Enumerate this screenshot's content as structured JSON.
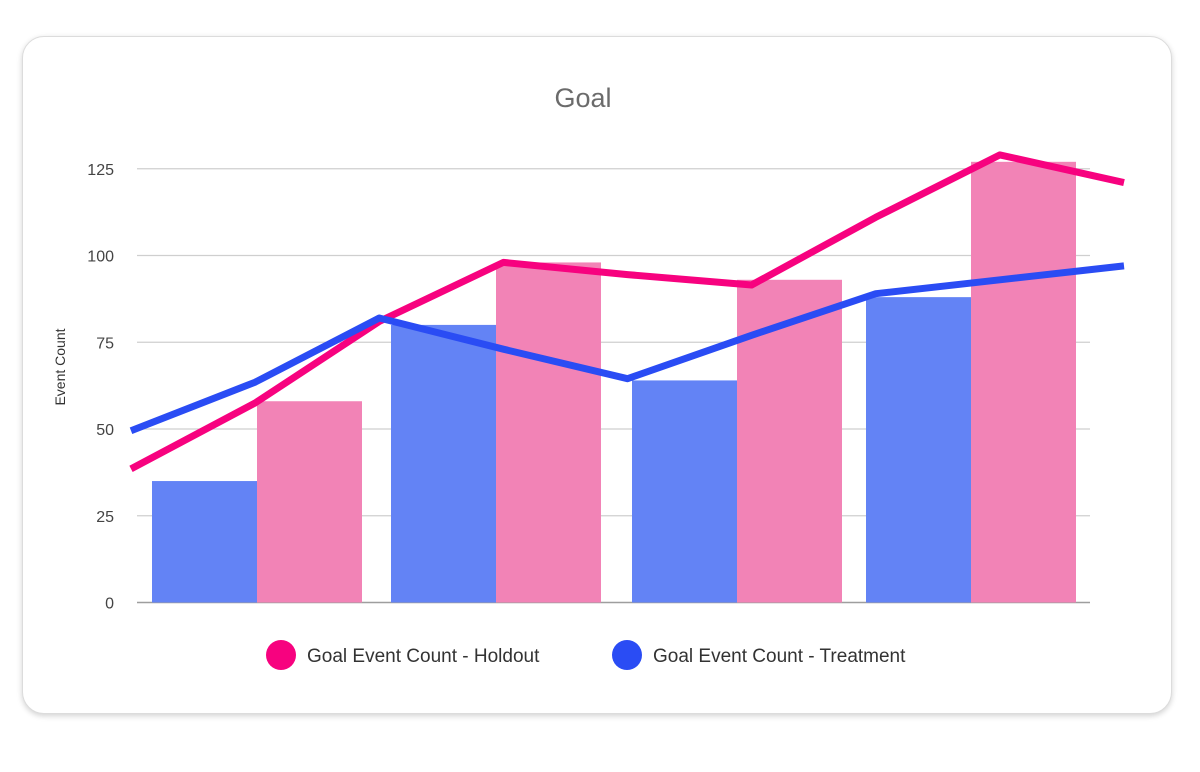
{
  "chart_data": {
    "type": "bar",
    "title": "Goal",
    "xlabel": "",
    "ylabel": "Event Count",
    "ylim": [
      0,
      137.5
    ],
    "yticks": [
      0,
      25,
      50,
      75,
      100,
      125
    ],
    "grid": true,
    "legend_position": "bottom",
    "categories": [
      "",
      "",
      "",
      ""
    ],
    "series": [
      {
        "name": "Goal Event Count - Treatment",
        "kind": "bar",
        "color": "#6383f5",
        "values": [
          35,
          80,
          64,
          88
        ]
      },
      {
        "name": "Goal Event Count - Holdout",
        "kind": "bar",
        "color": "#f283b6",
        "values": [
          58,
          98,
          93,
          127
        ]
      }
    ],
    "lines": [
      {
        "name": "Goal Event Count - Holdout",
        "color": "#f7027f",
        "x": [
          0,
          1,
          2,
          3,
          4,
          5,
          6,
          7,
          8
        ],
        "values": [
          38.5,
          57.5,
          81,
          98,
          94.5,
          91.5,
          111,
          129,
          121
        ]
      },
      {
        "name": "Goal Event Count - Treatment",
        "color": "#2a4cf4",
        "x": [
          0,
          1,
          2,
          3,
          4,
          5,
          6,
          7,
          8
        ],
        "values": [
          49.5,
          63.5,
          82,
          73,
          64.5,
          77,
          89,
          93,
          97
        ]
      }
    ],
    "legend": [
      {
        "name": "Goal Event Count - Holdout",
        "color": "#f7027f"
      },
      {
        "name": "Goal Event Count - Treatment",
        "color": "#2a4cf4"
      }
    ]
  }
}
